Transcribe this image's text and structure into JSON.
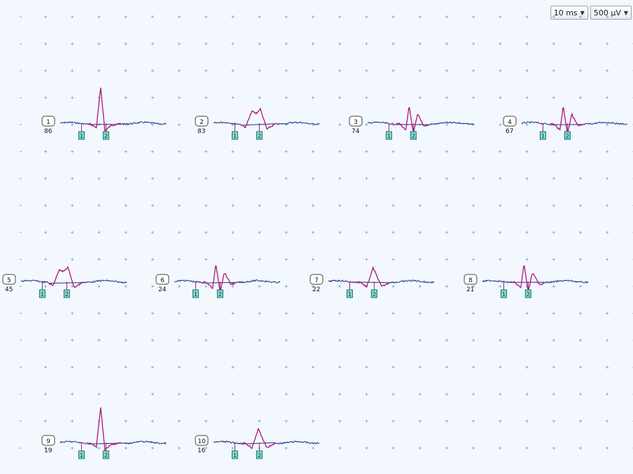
{
  "toolbar": {
    "time_scale": "10 ms",
    "amp_scale": "500 µV"
  },
  "colors": {
    "background": "#f2f8fd",
    "grid": "#7fb0d8",
    "baseline": "#1b2f8c",
    "waveform": "#b0137e",
    "marker_fill": "#7fd9cf",
    "marker_stroke": "#1a6f6a"
  },
  "channels": [
    {
      "id": "1",
      "count": "86",
      "shape": "spike"
    },
    {
      "id": "2",
      "count": "83",
      "shape": "double"
    },
    {
      "id": "3",
      "count": "74",
      "shape": "bipolar"
    },
    {
      "id": "4",
      "count": "67",
      "shape": "bipolar"
    },
    {
      "id": "5",
      "count": "45",
      "shape": "double"
    },
    {
      "id": "6",
      "count": "24",
      "shape": "bipolar"
    },
    {
      "id": "7",
      "count": "22",
      "shape": "small"
    },
    {
      "id": "8",
      "count": "21",
      "shape": "bipolar"
    },
    {
      "id": "9",
      "count": "19",
      "shape": "spike"
    },
    {
      "id": "10",
      "count": "16",
      "shape": "small"
    }
  ],
  "markers": [
    "1",
    "2"
  ]
}
